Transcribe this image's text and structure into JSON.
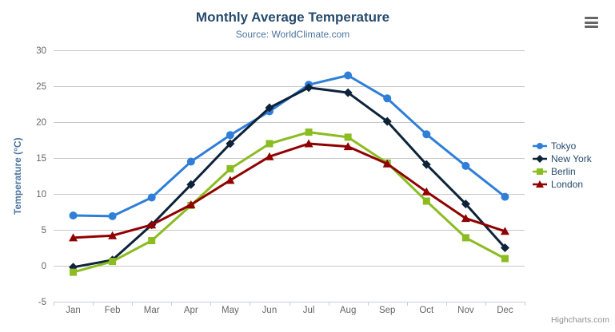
{
  "credits": {
    "label": "Highcharts.com"
  },
  "chart_data": {
    "type": "line",
    "title": "Monthly Average Temperature",
    "subtitle": "Source: WorldClimate.com",
    "xlabel": "",
    "ylabel": "Temperature (°C)",
    "categories": [
      "Jan",
      "Feb",
      "Mar",
      "Apr",
      "May",
      "Jun",
      "Jul",
      "Aug",
      "Sep",
      "Oct",
      "Nov",
      "Dec"
    ],
    "series": [
      {
        "name": "Tokyo",
        "color": "#2f7ed8",
        "marker": "circle",
        "values": [
          7.0,
          6.9,
          9.5,
          14.5,
          18.2,
          21.5,
          25.2,
          26.5,
          23.3,
          18.3,
          13.9,
          9.6
        ]
      },
      {
        "name": "New York",
        "color": "#0d233a",
        "marker": "diamond",
        "values": [
          -0.2,
          0.8,
          5.7,
          11.3,
          17.0,
          22.0,
          24.8,
          24.1,
          20.1,
          14.1,
          8.6,
          2.5
        ]
      },
      {
        "name": "Berlin",
        "color": "#8bbc21",
        "marker": "square",
        "values": [
          -0.9,
          0.6,
          3.5,
          8.4,
          13.5,
          17.0,
          18.6,
          17.9,
          14.3,
          9.0,
          3.9,
          1.0
        ]
      },
      {
        "name": "London",
        "color": "#910000",
        "marker": "triangle",
        "values": [
          3.9,
          4.2,
          5.7,
          8.5,
          11.9,
          15.2,
          17.0,
          16.6,
          14.2,
          10.3,
          6.6,
          4.8
        ]
      }
    ],
    "ylim": [
      -5,
      30
    ],
    "y_ticks": [
      -5,
      0,
      5,
      10,
      15,
      20,
      25,
      30
    ],
    "grid": true,
    "legend_position": "right",
    "colors": {
      "gridline": "#c8c8c8",
      "axis_line": "#c0d0e0",
      "tick_label": "#666666",
      "title": "#274b6d",
      "subtitle": "#4d759e",
      "axis_title": "#4d759e",
      "legend_text": "#274b6d",
      "credits": "#909090"
    }
  }
}
